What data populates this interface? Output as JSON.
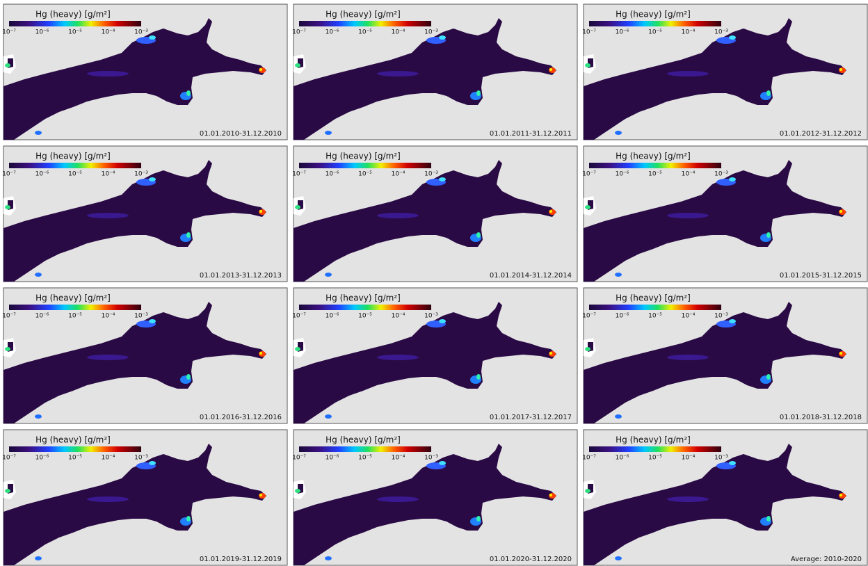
{
  "colorbar": {
    "title": "Hg (heavy)  [g/m²]",
    "ticks": [
      "10⁻⁷",
      "10⁻⁶",
      "10⁻⁵",
      "10⁻⁴",
      "10⁻³"
    ]
  },
  "panels": [
    {
      "label": "01.01.2010-31.12.2010"
    },
    {
      "label": "01.01.2011-31.12.2011"
    },
    {
      "label": "01.01.2012-31.12.2012"
    },
    {
      "label": "01.01.2013-31.12.2013"
    },
    {
      "label": "01.01.2014-31.12.2014"
    },
    {
      "label": "01.01.2015-31.12.2015"
    },
    {
      "label": "01.01.2016-31.12.2016"
    },
    {
      "label": "01.01.2017-31.12.2017"
    },
    {
      "label": "01.01.2018-31.12.2018"
    },
    {
      "label": "01.01.2019-31.12.2019"
    },
    {
      "label": "01.01.2020-31.12.2020"
    },
    {
      "label": "Average: 2010-2020"
    }
  ]
}
